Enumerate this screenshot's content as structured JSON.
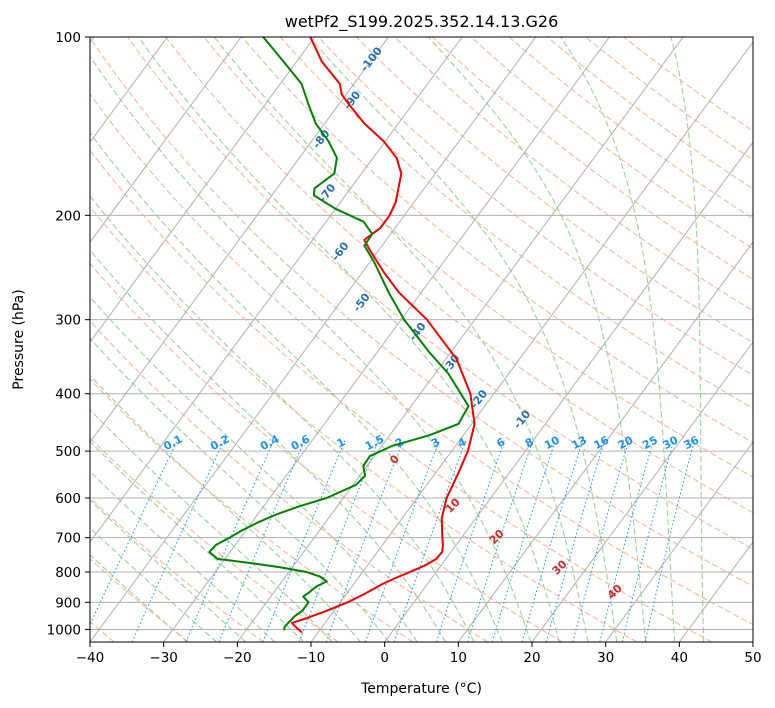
{
  "chart_data": {
    "type": "line",
    "diagram": "skew-T log-P",
    "title": "wetPf2_S199.2025.352.14.13.G26",
    "xlabel": "Temperature (°C)",
    "ylabel": "Pressure (hPa)",
    "xlim": [
      -40,
      50
    ],
    "ylim": [
      1050,
      100
    ],
    "x_ticks": [
      "−40",
      "−30",
      "−20",
      "−10",
      "0",
      "10",
      "20",
      "30",
      "40",
      "50"
    ],
    "x_tick_values": [
      -40,
      -30,
      -20,
      -10,
      0,
      10,
      20,
      30,
      40,
      50
    ],
    "y_ticks": [
      "100",
      "200",
      "300",
      "400",
      "500",
      "600",
      "700",
      "800",
      "900",
      "1000"
    ],
    "y_tick_values": [
      100,
      200,
      300,
      400,
      500,
      600,
      700,
      800,
      900,
      1000
    ],
    "grid": true,
    "series": [
      {
        "name": "temperature",
        "color": "#ee0000",
        "points": [
          {
            "p": 1010,
            "t": -12.3
          },
          {
            "p": 990,
            "t": -13.6
          },
          {
            "p": 975,
            "t": -14.5
          },
          {
            "p": 960,
            "t": -13.2
          },
          {
            "p": 930,
            "t": -11.0
          },
          {
            "p": 900,
            "t": -9.0
          },
          {
            "p": 870,
            "t": -7.5
          },
          {
            "p": 840,
            "t": -6.2
          },
          {
            "p": 820,
            "t": -5.0
          },
          {
            "p": 800,
            "t": -3.6
          },
          {
            "p": 780,
            "t": -2.2
          },
          {
            "p": 760,
            "t": -1.3
          },
          {
            "p": 740,
            "t": -1.2
          },
          {
            "p": 720,
            "t": -1.8
          },
          {
            "p": 700,
            "t": -2.6
          },
          {
            "p": 650,
            "t": -4.6
          },
          {
            "p": 600,
            "t": -6.0
          },
          {
            "p": 550,
            "t": -6.8
          },
          {
            "p": 500,
            "t": -7.8
          },
          {
            "p": 450,
            "t": -9.6
          },
          {
            "p": 400,
            "t": -13.2
          },
          {
            "p": 350,
            "t": -18.5
          },
          {
            "p": 300,
            "t": -26.5
          },
          {
            "p": 270,
            "t": -33.0
          },
          {
            "p": 250,
            "t": -37.0
          },
          {
            "p": 230,
            "t": -41.0
          },
          {
            "p": 220,
            "t": -43.0
          },
          {
            "p": 210,
            "t": -42.0
          },
          {
            "p": 200,
            "t": -42.0
          },
          {
            "p": 190,
            "t": -42.5
          },
          {
            "p": 170,
            "t": -44.6
          },
          {
            "p": 160,
            "t": -46.8
          },
          {
            "p": 150,
            "t": -50.2
          },
          {
            "p": 140,
            "t": -54.6
          },
          {
            "p": 130,
            "t": -58.6
          },
          {
            "p": 125,
            "t": -60.6
          },
          {
            "p": 120,
            "t": -61.9
          },
          {
            "p": 110,
            "t": -66.6
          },
          {
            "p": 100,
            "t": -70.6
          }
        ]
      },
      {
        "name": "dewpoint",
        "color": "#008000",
        "points": [
          {
            "p": 1000,
            "t": -14.9
          },
          {
            "p": 990,
            "t": -15.1
          },
          {
            "p": 975,
            "t": -15.0
          },
          {
            "p": 950,
            "t": -14.8
          },
          {
            "p": 930,
            "t": -14.3
          },
          {
            "p": 900,
            "t": -14.3
          },
          {
            "p": 880,
            "t": -15.6
          },
          {
            "p": 865,
            "t": -15.2
          },
          {
            "p": 845,
            "t": -14.8
          },
          {
            "p": 830,
            "t": -13.9
          },
          {
            "p": 815,
            "t": -15.2
          },
          {
            "p": 800,
            "t": -17.6
          },
          {
            "p": 785,
            "t": -21.8
          },
          {
            "p": 775,
            "t": -25.2
          },
          {
            "p": 760,
            "t": -31.0
          },
          {
            "p": 740,
            "t": -32.8
          },
          {
            "p": 720,
            "t": -32.6
          },
          {
            "p": 700,
            "t": -31.5
          },
          {
            "p": 680,
            "t": -30.5
          },
          {
            "p": 660,
            "t": -29.2
          },
          {
            "p": 640,
            "t": -27.5
          },
          {
            "p": 620,
            "t": -25.2
          },
          {
            "p": 600,
            "t": -22.3
          },
          {
            "p": 570,
            "t": -19.6
          },
          {
            "p": 550,
            "t": -19.3
          },
          {
            "p": 530,
            "t": -20.5
          },
          {
            "p": 510,
            "t": -20.6
          },
          {
            "p": 490,
            "t": -18.6
          },
          {
            "p": 470,
            "t": -14.6
          },
          {
            "p": 450,
            "t": -11.8
          },
          {
            "p": 420,
            "t": -12.2
          },
          {
            "p": 400,
            "t": -14.5
          },
          {
            "p": 370,
            "t": -18.2
          },
          {
            "p": 340,
            "t": -23.0
          },
          {
            "p": 300,
            "t": -29.6
          },
          {
            "p": 270,
            "t": -34.4
          },
          {
            "p": 240,
            "t": -39.4
          },
          {
            "p": 225,
            "t": -42.4
          },
          {
            "p": 215,
            "t": -42.5
          },
          {
            "p": 205,
            "t": -44.9
          },
          {
            "p": 195,
            "t": -50.0
          },
          {
            "p": 185,
            "t": -54.3
          },
          {
            "p": 180,
            "t": -54.9
          },
          {
            "p": 170,
            "t": -53.7
          },
          {
            "p": 160,
            "t": -54.9
          },
          {
            "p": 150,
            "t": -57.7
          },
          {
            "p": 140,
            "t": -61.2
          },
          {
            "p": 130,
            "t": -64.1
          },
          {
            "p": 120,
            "t": -67.1
          },
          {
            "p": 110,
            "t": -71.8
          },
          {
            "p": 100,
            "t": -77.0
          }
        ]
      }
    ],
    "dry_adiabat_labels": [
      "-100",
      "-90",
      "-80",
      "-70",
      "-60",
      "-50",
      "-40",
      "-30",
      "-20",
      "-10"
    ],
    "dry_adiabat_points": [
      {
        "p": 110,
        "t": -59.5
      },
      {
        "p": 129,
        "t": -58.0
      },
      {
        "p": 150,
        "t": -58.3
      },
      {
        "p": 185,
        "t": -52.1
      },
      {
        "p": 232,
        "t": -44.5
      },
      {
        "p": 283,
        "t": -36.5
      },
      {
        "p": 317,
        "t": -26.0
      },
      {
        "p": 359,
        "t": -18.2
      },
      {
        "p": 412,
        "t": -10.9
      },
      {
        "p": 446,
        "t": -3.0
      }
    ],
    "moist_adiabat_labels": [
      "0",
      "10",
      "20",
      "30",
      "40"
    ],
    "moist_adiabat_points": [
      {
        "p": 522,
        "t": -16.3
      },
      {
        "p": 624,
        "t": -3.8
      },
      {
        "p": 705,
        "t": 5.3
      },
      {
        "p": 794,
        "t": 16.9
      },
      {
        "p": 872,
        "t": 26.8
      }
    ],
    "mixing_ratio_labels": [
      "0.1",
      "0.2",
      "0.4",
      "0.6",
      "1",
      "1.5",
      "2",
      "3",
      "4",
      "6",
      "8",
      "10",
      "13",
      "16",
      "20",
      "25",
      "30",
      "36"
    ],
    "mixing_ratio_values": [
      0.1,
      0.2,
      0.4,
      0.6,
      1,
      1.5,
      2,
      3,
      4,
      6,
      8,
      10,
      13,
      16,
      20,
      25,
      30,
      36
    ],
    "mixing_ratio_label_p": 490,
    "colors": {
      "dry_adiabat": "#f6b99e",
      "dry_label": "#2a6fb0",
      "moist_adiabat": "#9fd09f",
      "moist_label": "#d62728",
      "mixing_ratio": "#1e90ff",
      "grid": "#b0b0b0"
    }
  }
}
